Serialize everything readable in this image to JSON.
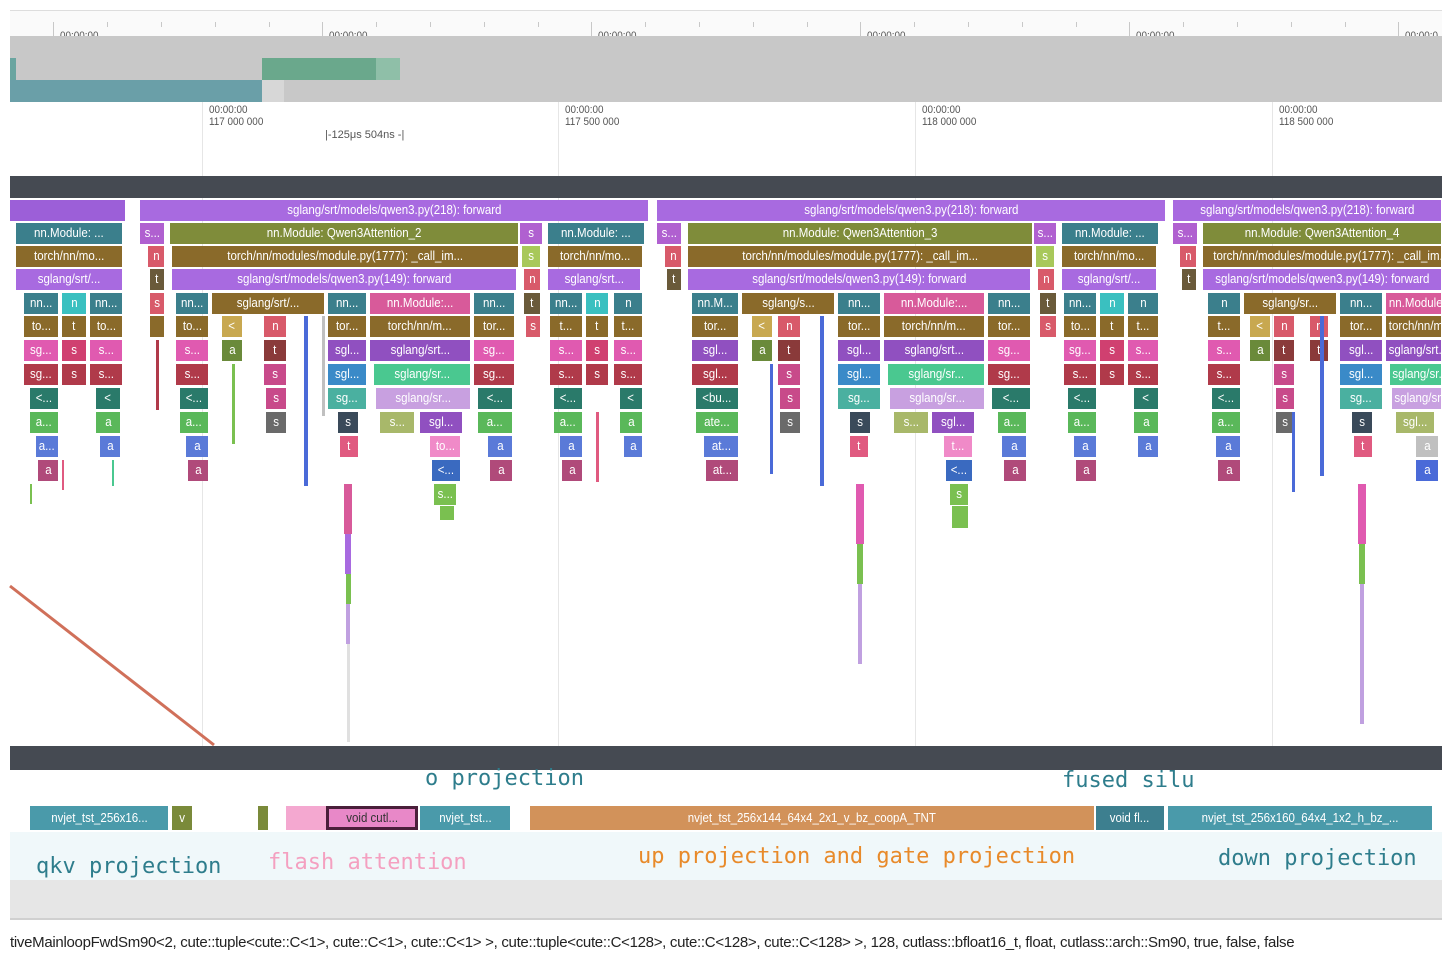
{
  "overview": {
    "ticks": [
      "00:00:00",
      "00:00:00",
      "00:00:00",
      "00:00:00",
      "00:00:00",
      "00:00:00"
    ],
    "tick_partial": "00:00:0"
  },
  "ruler": {
    "ticks": [
      {
        "time": "00:00:00",
        "ns": "117 000 000"
      },
      {
        "time": "00:00:00",
        "ns": "117 500 000"
      },
      {
        "time": "00:00:00",
        "ns": "118 000 000"
      },
      {
        "time": "00:00:00",
        "ns": "118 500 000"
      }
    ],
    "selection_label": "|-125μs 504ns  -|"
  },
  "flame": {
    "group1": {
      "forward": "sglang/srt/models/qwen3.py(218): forward",
      "attention": "nn.Module: Qwen3Attention_2",
      "call": "torch/nn/modules/module.py(1777): _call_im...",
      "qwen_fwd": "sglang/srt/models/qwen3.py(149): forward",
      "left_nn": "nn.Module: ...",
      "left_torch": "torch/nn/mo...",
      "left_sglang": "sglang/srt/...",
      "right_nn": "nn.Module: ...",
      "right_torch": "torch/nn/mo...",
      "right_sglang": "sglang/srt...",
      "small_s": "s...",
      "inner_sglang": "sglang/srt/...",
      "inner_nnmod": "nn.Module:...",
      "inner_torch": "torch/nn/m...",
      "inner_sg1": "sglang/srt...",
      "inner_sg2": "sglang/sr...",
      "inner_sg3": "sglang/sr..."
    },
    "group2": {
      "forward": "sglang/srt/models/qwen3.py(218): forward",
      "attention": "nn.Module: Qwen3Attention_3",
      "call": "torch/nn/modules/module.py(1777): _call_im...",
      "qwen_fwd": "sglang/srt/models/qwen3.py(149): forward",
      "right_nn": "nn.Module: ...",
      "right_torch": "torch/nn/mo...",
      "right_sglang": "sglang/srt/...",
      "inner_sglang": "sglang/s...",
      "inner_nnmod": "nn.Module:...",
      "inner_torch": "torch/nn/m...",
      "inner_sg1": "sglang/srt...",
      "inner_sg2": "sglang/sr...",
      "inner_sg3": "sglang/sr...",
      "nnM": "nn.M...",
      "bu": "<bu...",
      "ate": "ate...",
      "at1": "at...",
      "at2": "at..."
    },
    "group3": {
      "forward": "sglang/srt/models/qwen3.py(218): forward",
      "attention": "nn.Module: Qwen3Attention_4",
      "call": "torch/nn/modules/module.py(1777): _call_im...",
      "qwen_fwd": "sglang/srt/models/qwen3.py(149): forward",
      "inner_sglang": "sglang/sr...",
      "inner_nnmod": "nn.Module:...",
      "inner_torch": "torch/nn/m...",
      "inner_sg1": "sglang/srt...",
      "inner_sg2": "sglang/sr...",
      "inner_sg3": "sglang/sr..."
    },
    "short": {
      "nn": "nn...",
      "to": "to...",
      "tor": "tor...",
      "sg": "sg...",
      "sgl": "sgl...",
      "s": "s...",
      "t": "t...",
      "lt": "<...",
      "a": "a...",
      "n": "n",
      "tt": "t",
      "ss": "s",
      "aa": "a",
      "lt1": "<",
      "ldot": "<..."
    }
  },
  "kernels": [
    {
      "label": "nvjet_tst_256x16...",
      "color": "#4a9aaa"
    },
    {
      "label": "v",
      "color": "#7a8a3a"
    },
    {
      "label": "void cutl...",
      "color": "#e888c8"
    },
    {
      "label": "nvjet_tst...",
      "color": "#4a9aaa"
    },
    {
      "label": "nvjet_tst_256x144_64x4_2x1_v_bz_coopA_TNT",
      "color": "#d2925a"
    },
    {
      "label": "void fl...",
      "color": "#3d7f8f"
    },
    {
      "label": "nvjet_tst_256x160_64x4_1x2_h_bz_...",
      "color": "#4a9aaa"
    }
  ],
  "annotations": {
    "o_projection": "o projection",
    "fused_silu": "fused silu",
    "qkv_projection": "qkv projection",
    "flash_attention": "flash attention",
    "up_gate": "up projection and gate projection",
    "down_projection": "down projection"
  },
  "details": {
    "signature": "tiveMainloopFwdSm90<2, cute::tuple<cute::C<1>, cute::C<1>, cute::C<1> >, cute::tuple<cute::C<128>, cute::C<128>, cute::C<128> >, 128, cutlass::bfloat16_t, float, cutlass::arch::Sm90, true, false, false"
  },
  "colors": {
    "track_bar": "#454a52",
    "annotation_teal": "#2e7d8c",
    "annotation_orange": "#e88a2a",
    "annotation_pink": "#f4a0c0",
    "selection_border": "#4a1f3a"
  }
}
